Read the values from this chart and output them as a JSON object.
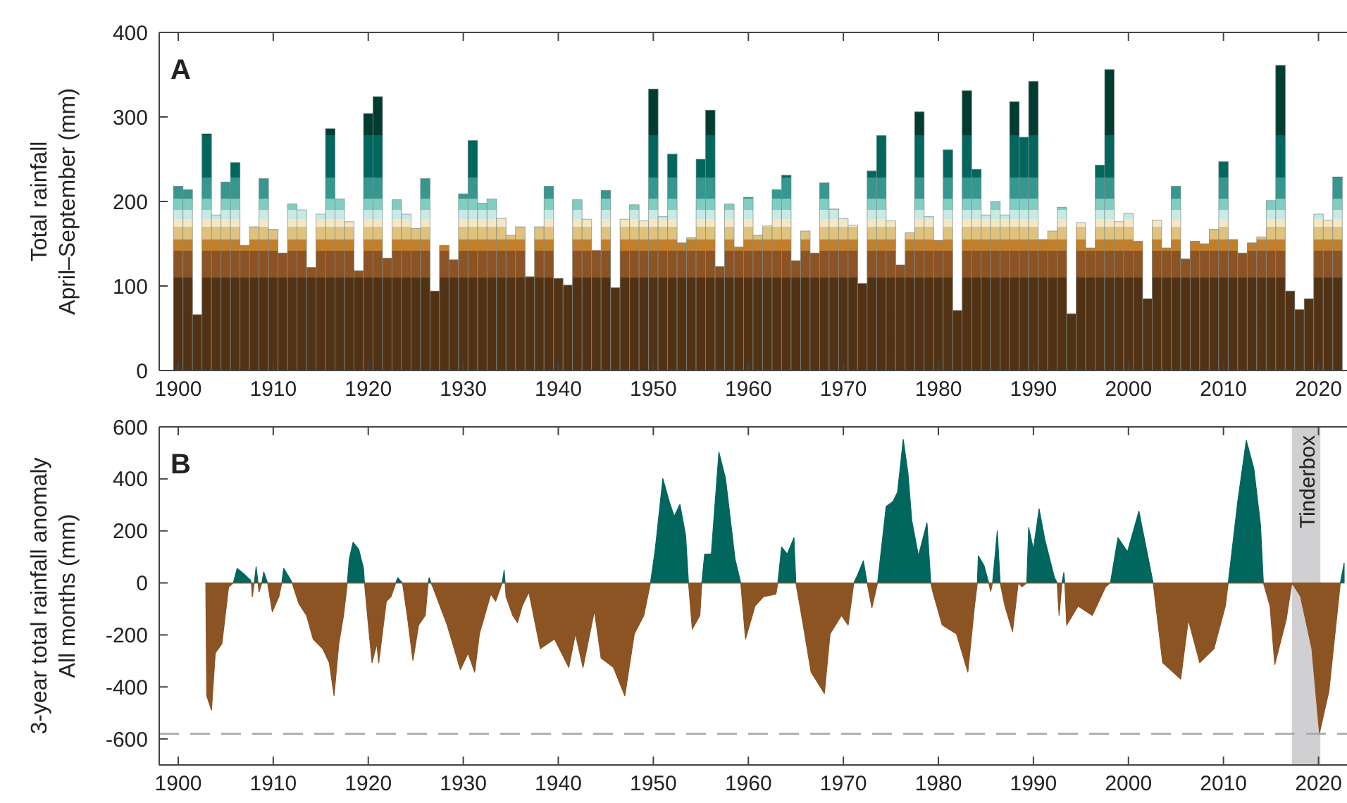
{
  "chart_data": [
    {
      "type": "bar",
      "title": "A",
      "ylabel": "Total rainfall\nApril–September (mm)",
      "xlim": [
        1898,
        2023
      ],
      "xticks": [
        1900,
        1910,
        1920,
        1930,
        1940,
        1950,
        1960,
        1970,
        1980,
        1990,
        2000,
        2010,
        2020
      ],
      "ylim": [
        0,
        400
      ],
      "yticks": [
        0,
        100,
        200,
        300,
        400
      ],
      "x": [
        1900,
        1901,
        1902,
        1903,
        1904,
        1905,
        1906,
        1907,
        1908,
        1909,
        1910,
        1911,
        1912,
        1913,
        1914,
        1915,
        1916,
        1917,
        1918,
        1919,
        1920,
        1921,
        1922,
        1923,
        1924,
        1925,
        1926,
        1927,
        1928,
        1929,
        1930,
        1931,
        1932,
        1933,
        1934,
        1935,
        1936,
        1937,
        1938,
        1939,
        1940,
        1941,
        1942,
        1943,
        1944,
        1945,
        1946,
        1947,
        1948,
        1949,
        1950,
        1951,
        1952,
        1953,
        1954,
        1955,
        1956,
        1957,
        1958,
        1959,
        1960,
        1961,
        1962,
        1963,
        1964,
        1965,
        1966,
        1967,
        1968,
        1969,
        1970,
        1971,
        1972,
        1973,
        1974,
        1975,
        1976,
        1977,
        1978,
        1979,
        1980,
        1981,
        1982,
        1983,
        1984,
        1985,
        1986,
        1987,
        1988,
        1989,
        1990,
        1991,
        1992,
        1993,
        1994,
        1995,
        1996,
        1997,
        1998,
        1999,
        2000,
        2001,
        2002,
        2003,
        2004,
        2005,
        2006,
        2007,
        2008,
        2009,
        2010,
        2011,
        2012,
        2013,
        2014,
        2015,
        2016,
        2017,
        2018,
        2019,
        2020,
        2021,
        2022
      ],
      "values": [
        218,
        214,
        66,
        280,
        184,
        223,
        246,
        148,
        170,
        227,
        167,
        139,
        197,
        190,
        122,
        185,
        286,
        203,
        176,
        118,
        304,
        324,
        133,
        202,
        185,
        168,
        227,
        94,
        148,
        131,
        209,
        272,
        198,
        203,
        180,
        160,
        170,
        111,
        170,
        218,
        109,
        101,
        202,
        179,
        142,
        213,
        98,
        179,
        196,
        177,
        333,
        182,
        256,
        151,
        157,
        250,
        308,
        123,
        197,
        146,
        205,
        160,
        171,
        214,
        231,
        130,
        165,
        139,
        222,
        191,
        180,
        172,
        103,
        236,
        278,
        177,
        125,
        163,
        306,
        182,
        154,
        261,
        71,
        331,
        238,
        184,
        200,
        184,
        318,
        276,
        342,
        155,
        165,
        193,
        67,
        175,
        145,
        243,
        356,
        176,
        186,
        153,
        85,
        178,
        145,
        218,
        132,
        153,
        150,
        167,
        247,
        155,
        139,
        151,
        158,
        201,
        361,
        94,
        72,
        85,
        185,
        178,
        229
      ],
      "bands": [
        {
          "axis": "y",
          "from": 0,
          "to": 110,
          "color": "#523214"
        },
        {
          "axis": "y",
          "from": 110,
          "to": 142,
          "color": "#8c5325"
        },
        {
          "axis": "y",
          "from": 142,
          "to": 155,
          "color": "#c17f2c"
        },
        {
          "axis": "y",
          "from": 155,
          "to": 170,
          "color": "#dfc27d"
        },
        {
          "axis": "y",
          "from": 170,
          "to": 179,
          "color": "#f5e7c3"
        },
        {
          "axis": "y",
          "from": 179,
          "to": 190,
          "color": "#c7eae5"
        },
        {
          "axis": "y",
          "from": 190,
          "to": 203,
          "color": "#80cdc1"
        },
        {
          "axis": "y",
          "from": 203,
          "to": 228,
          "color": "#35978f"
        },
        {
          "axis": "y",
          "from": 228,
          "to": 278,
          "color": "#01665e"
        },
        {
          "axis": "y",
          "from": 278,
          "to": 400,
          "color": "#003c30"
        }
      ]
    },
    {
      "type": "area",
      "title": "B",
      "ylabel": "3-year total rainfall anomaly\nAll months (mm)",
      "xlim": [
        1898,
        2023
      ],
      "xticks": [
        1900,
        1910,
        1920,
        1930,
        1940,
        1950,
        1960,
        1970,
        1980,
        1990,
        2000,
        2010,
        2020
      ],
      "ylim": [
        -700,
        600
      ],
      "yticks": [
        -600,
        -400,
        -200,
        0,
        200,
        400,
        600
      ],
      "series": [
        {
          "color": "#01665e",
          "x": [
            1902.9,
            1905.8,
            1906.2,
            1906.8,
            1907.6,
            1907.7,
            1908.0,
            1908.2,
            1908.4,
            1908.8,
            1909.0,
            1909.4,
            1910.9,
            1911.1,
            1911.7,
            1912.0,
            1917.8,
            1918.0,
            1918.4,
            1919.0,
            1919.5,
            1919.6,
            1922.9,
            1923.1,
            1923.6,
            1926.3,
            1926.4,
            1926.6,
            1934.1,
            1934.3,
            1934.4,
            1949.7,
            1950.2,
            1951.0,
            1951.7,
            1952.2,
            1952.8,
            1953.4,
            1953.7,
            1955.1,
            1955.4,
            1956.1,
            1956.9,
            1957.6,
            1958.6,
            1959.2,
            1963.1,
            1963.5,
            1964.1,
            1964.8,
            1965.0,
            1971.1,
            1971.5,
            1972.1,
            1972.5,
            1973.6,
            1974.5,
            1975.2,
            1975.7,
            1976.3,
            1976.8,
            1977.2,
            1977.9,
            1978.8,
            1979.2,
            1984.1,
            1984.2,
            1984.8,
            1985.3,
            1985.7,
            1986.2,
            1986.5,
            1988.4,
            1989.3,
            1989.5,
            1990.0,
            1990.6,
            1991.2,
            1992.2,
            1992.5,
            1993.0,
            1993.2,
            1993.3,
            1998.1,
            1998.9,
            1999.9,
            2001.1,
            2001.8,
            2002.6,
            2010.5,
            2011.5,
            2012.4,
            2013.2,
            2013.9,
            2014.2,
            2022.3,
            2022.7
          ],
          "values": [
            0,
            0,
            56,
            38,
            11,
            0,
            0,
            62,
            0,
            0,
            42,
            0,
            0,
            56,
            20,
            0,
            0,
            92,
            156,
            129,
            56,
            0,
            0,
            20,
            0,
            0,
            20,
            0,
            0,
            49,
            0,
            0,
            129,
            401,
            310,
            256,
            302,
            183,
            0,
            0,
            111,
            111,
            503,
            401,
            92,
            0,
            0,
            138,
            111,
            174,
            0,
            0,
            31,
            85,
            0,
            0,
            294,
            312,
            349,
            552,
            421,
            240,
            104,
            231,
            0,
            0,
            104,
            67,
            0,
            0,
            200,
            0,
            0,
            0,
            213,
            129,
            285,
            167,
            22,
            0,
            0,
            40,
            0,
            0,
            174,
            120,
            276,
            147,
            0,
            0,
            312,
            548,
            439,
            222,
            0,
            0,
            76
          ]
        },
        {
          "color": "#8c5323",
          "x": [
            1902.9,
            1903.0,
            1903.5,
            1903.9,
            1904.6,
            1905.3,
            1905.8,
            1907.7,
            1907.8,
            1908.0,
            1908.4,
            1908.5,
            1908.8,
            1909.4,
            1909.9,
            1910.6,
            1910.9,
            1912.0,
            1912.2,
            1912.7,
            1913.5,
            1914.2,
            1915.2,
            1915.9,
            1916.4,
            1916.9,
            1917.4,
            1917.8,
            1919.6,
            1920.1,
            1920.4,
            1920.9,
            1921.1,
            1921.9,
            1922.4,
            1922.9,
            1923.6,
            1924.1,
            1924.7,
            1925.3,
            1926.0,
            1926.3,
            1926.6,
            1926.8,
            1928.3,
            1929.7,
            1930.5,
            1931.2,
            1931.7,
            1932.9,
            1933.4,
            1934.1,
            1934.4,
            1934.5,
            1935.2,
            1935.7,
            1936.2,
            1936.9,
            1938.1,
            1939.6,
            1941.1,
            1941.8,
            1942.6,
            1943.8,
            1944.5,
            1945.8,
            1947.0,
            1948.0,
            1949.0,
            1949.7,
            1953.7,
            1954.1,
            1954.9,
            1955.1,
            1959.2,
            1959.7,
            1960.7,
            1961.6,
            1962.9,
            1963.1,
            1965.0,
            1965.6,
            1966.6,
            1968.0,
            1968.6,
            1969.8,
            1970.5,
            1971.1,
            1972.5,
            1973.0,
            1973.6,
            1979.2,
            1979.4,
            1980.4,
            1981.9,
            1983.1,
            1983.8,
            1984.1,
            1985.3,
            1985.5,
            1985.7,
            1986.5,
            1987.0,
            1987.8,
            1988.4,
            1988.8,
            1989.3,
            1992.5,
            1992.7,
            1993.0,
            1993.3,
            1993.5,
            1994.7,
            1996.2,
            1997.6,
            1998.1,
            2002.6,
            2003.6,
            2005.5,
            2006.3,
            2007.5,
            2009.0,
            2010.2,
            2010.5,
            2014.2,
            2014.9,
            2015.4,
            2016.6,
            2017.2,
            2018.1,
            2019.3,
            2020.1,
            2021.1,
            2022.3
          ],
          "values": [
            0,
            -434,
            -489,
            -270,
            -234,
            -16,
            0,
            0,
            -53,
            0,
            0,
            -35,
            0,
            0,
            -111,
            -53,
            0,
            0,
            -25,
            -80,
            -125,
            -216,
            -253,
            -307,
            -434,
            -234,
            -125,
            0,
            0,
            -196,
            -307,
            -234,
            -307,
            -71,
            -53,
            0,
            0,
            -125,
            -298,
            -162,
            -125,
            0,
            0,
            -16,
            -162,
            -334,
            -270,
            -343,
            -196,
            -43,
            -71,
            0,
            0,
            -53,
            -125,
            -153,
            -89,
            -35,
            -253,
            -216,
            -325,
            -196,
            -325,
            -107,
            -289,
            -325,
            -434,
            -196,
            -125,
            0,
            0,
            -178,
            -125,
            0,
            0,
            -216,
            -89,
            -53,
            -43,
            0,
            0,
            -125,
            -343,
            -425,
            -196,
            -125,
            -162,
            0,
            0,
            -96,
            0,
            0,
            -33,
            -162,
            -196,
            -343,
            -89,
            0,
            0,
            -33,
            0,
            0,
            -89,
            -187,
            0,
            -15,
            0,
            0,
            -125,
            0,
            0,
            -162,
            -89,
            -125,
            -15,
            0,
            0,
            -307,
            -370,
            -142,
            -307,
            -253,
            -89,
            0,
            0,
            -89,
            -314,
            -142,
            0,
            -51,
            -253,
            -578,
            -416,
            0
          ]
        }
      ],
      "ref_lines": [
        {
          "axis": "y",
          "value": -580,
          "color": "#a6a6a6",
          "line_style": "dashed"
        }
      ],
      "bands": [
        {
          "axis": "x",
          "from": 2017.2,
          "to": 2020.2,
          "label": "Tinderbox",
          "color": "#d0d0d2"
        }
      ]
    }
  ]
}
